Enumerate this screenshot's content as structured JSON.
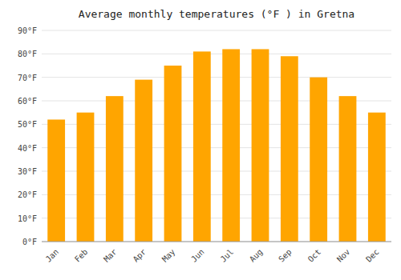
{
  "chart_data": {
    "type": "bar",
    "title": "Average monthly temperatures (°F ) in Gretna",
    "categories": [
      "Jan",
      "Feb",
      "Mar",
      "Apr",
      "May",
      "Jun",
      "Jul",
      "Aug",
      "Sep",
      "Oct",
      "Nov",
      "Dec"
    ],
    "values": [
      52,
      55,
      62,
      69,
      75,
      81,
      82,
      82,
      79,
      70,
      62,
      55
    ],
    "color": "#FFA500",
    "ylim": [
      0,
      90
    ],
    "yticks": [
      {
        "value": 0,
        "label": "0°F"
      },
      {
        "value": 10,
        "label": "10°F"
      },
      {
        "value": 20,
        "label": "20°F"
      },
      {
        "value": 30,
        "label": "30°F"
      },
      {
        "value": 40,
        "label": "40°F"
      },
      {
        "value": 50,
        "label": "50°F"
      },
      {
        "value": 60,
        "label": "60°F"
      },
      {
        "value": 70,
        "label": "70°F"
      },
      {
        "value": 80,
        "label": "80°F"
      },
      {
        "value": 90,
        "label": "90°F"
      }
    ],
    "grid": true
  }
}
